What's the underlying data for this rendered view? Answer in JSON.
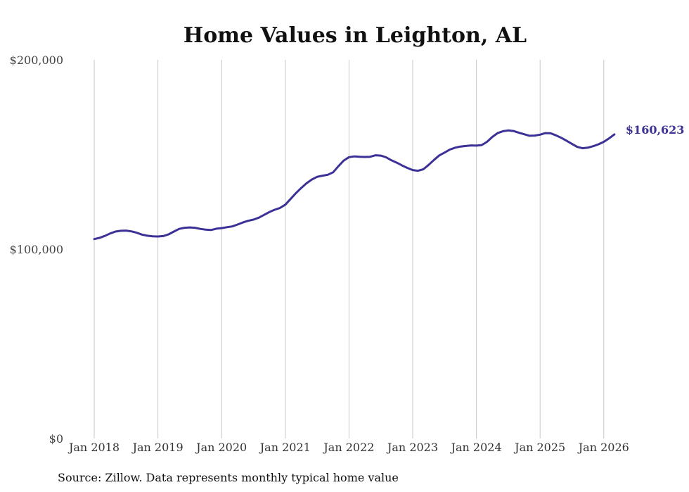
{
  "chart_data": {
    "type": "line",
    "title": "Home Values in Leighton, AL",
    "xlabel": "",
    "ylabel": "",
    "ylim": [
      0,
      200000
    ],
    "ytick_values": [
      0,
      100000,
      200000
    ],
    "ytick_labels": [
      "$0",
      "$100,000",
      "$200,000"
    ],
    "xtick_years": [
      2018,
      2019,
      2020,
      2021,
      2022,
      2023,
      2024,
      2025,
      2026
    ],
    "xtick_labels": [
      "Jan 2018",
      "Jan 2019",
      "Jan 2020",
      "Jan 2021",
      "Jan 2022",
      "Jan 2023",
      "Jan 2024",
      "Jan 2025",
      "Jan 2026"
    ],
    "grid": "vertical",
    "series": [
      {
        "name": "Typical home value",
        "color": "#3b3196",
        "x": [
          2018.0,
          2018.083,
          2018.167,
          2018.25,
          2018.333,
          2018.417,
          2018.5,
          2018.583,
          2018.667,
          2018.75,
          2018.833,
          2018.917,
          2019.0,
          2019.083,
          2019.167,
          2019.25,
          2019.333,
          2019.417,
          2019.5,
          2019.583,
          2019.667,
          2019.75,
          2019.833,
          2019.917,
          2020.0,
          2020.083,
          2020.167,
          2020.25,
          2020.333,
          2020.417,
          2020.5,
          2020.583,
          2020.667,
          2020.75,
          2020.833,
          2020.917,
          2021.0,
          2021.083,
          2021.167,
          2021.25,
          2021.333,
          2021.417,
          2021.5,
          2021.583,
          2021.667,
          2021.75,
          2021.833,
          2021.917,
          2022.0,
          2022.083,
          2022.167,
          2022.25,
          2022.333,
          2022.417,
          2022.5,
          2022.583,
          2022.667,
          2022.75,
          2022.833,
          2022.917,
          2023.0,
          2023.083,
          2023.167,
          2023.25,
          2023.333,
          2023.417,
          2023.5,
          2023.583,
          2023.667,
          2023.75,
          2023.833,
          2023.917,
          2024.0,
          2024.083,
          2024.167,
          2024.25,
          2024.333,
          2024.417,
          2024.5,
          2024.583,
          2024.667,
          2024.75,
          2024.833,
          2024.917,
          2025.0,
          2025.083,
          2025.167,
          2025.25,
          2025.333,
          2025.417,
          2025.5,
          2025.583,
          2025.667,
          2025.75,
          2025.833,
          2025.917,
          2026.0,
          2026.083,
          2026.167
        ],
        "values": [
          105300,
          106000,
          107000,
          108300,
          109300,
          109700,
          109800,
          109400,
          108700,
          107700,
          107100,
          106800,
          106700,
          106900,
          107800,
          109300,
          110700,
          111300,
          111500,
          111300,
          110700,
          110300,
          110100,
          110800,
          111100,
          111600,
          112000,
          113000,
          114100,
          115000,
          115600,
          116600,
          118100,
          119600,
          120800,
          121800,
          123500,
          126500,
          129600,
          132300,
          134800,
          136800,
          138200,
          138800,
          139300,
          140600,
          143800,
          146800,
          148600,
          149000,
          148800,
          148700,
          148800,
          149600,
          149400,
          148500,
          146900,
          145700,
          144200,
          142900,
          141800,
          141400,
          142200,
          144500,
          147100,
          149500,
          151000,
          152600,
          153600,
          154200,
          154500,
          154800,
          154700,
          155000,
          156700,
          159300,
          161300,
          162300,
          162700,
          162400,
          161500,
          160700,
          159900,
          160000,
          160500,
          161300,
          161200,
          160100,
          158800,
          157200,
          155600,
          154000,
          153300,
          153600,
          154400,
          155400,
          156700,
          158500,
          160623
        ]
      }
    ],
    "end_label": "$160,623",
    "source_note": "Source: Zillow. Data represents monthly typical home value"
  }
}
